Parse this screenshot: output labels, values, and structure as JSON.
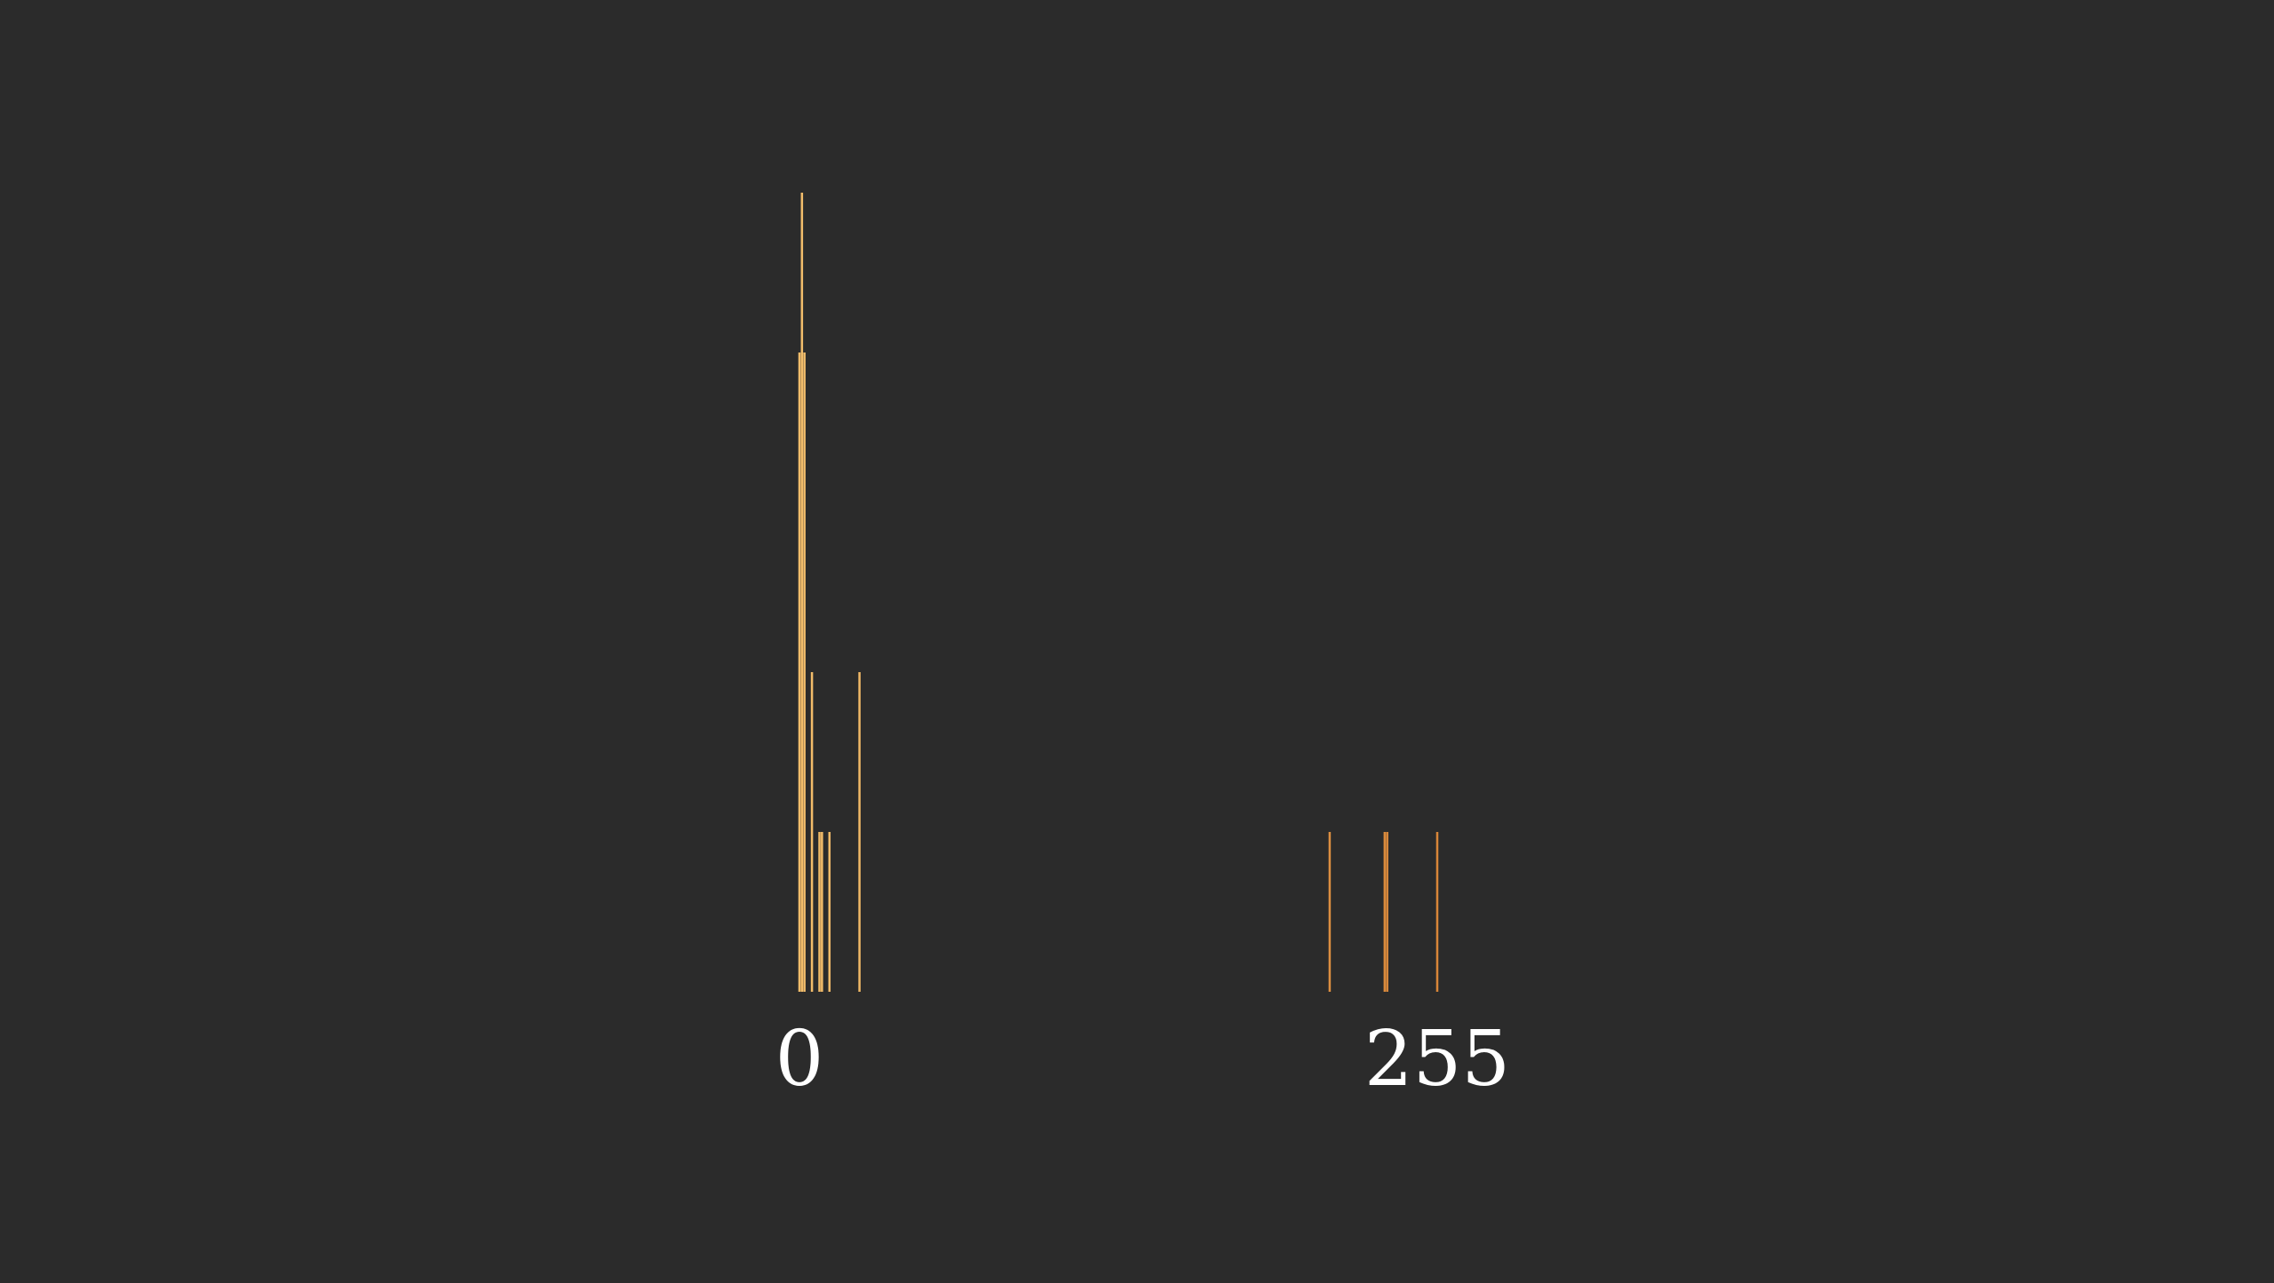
{
  "chart_data": {
    "type": "bar",
    "title": "",
    "xlabel": "",
    "ylabel": "",
    "x_tick_labels": [
      "0",
      "255"
    ],
    "x_ticks": [
      0,
      255
    ],
    "xlim": [
      0,
      255
    ],
    "ylim": [
      0,
      5
    ],
    "grid": false,
    "legend": "none",
    "color_low": "#f2bd6b",
    "color_high": "#d98638",
    "bars": [
      {
        "x": 0,
        "count": 4
      },
      {
        "x": 1,
        "count": 5
      },
      {
        "x": 2,
        "count": 4
      },
      {
        "x": 5,
        "count": 2
      },
      {
        "x": 8,
        "count": 1
      },
      {
        "x": 9,
        "count": 1
      },
      {
        "x": 12,
        "count": 1
      },
      {
        "x": 24,
        "count": 2
      },
      {
        "x": 212,
        "count": 1
      },
      {
        "x": 234,
        "count": 1
      },
      {
        "x": 235,
        "count": 1
      },
      {
        "x": 255,
        "count": 1
      }
    ]
  }
}
